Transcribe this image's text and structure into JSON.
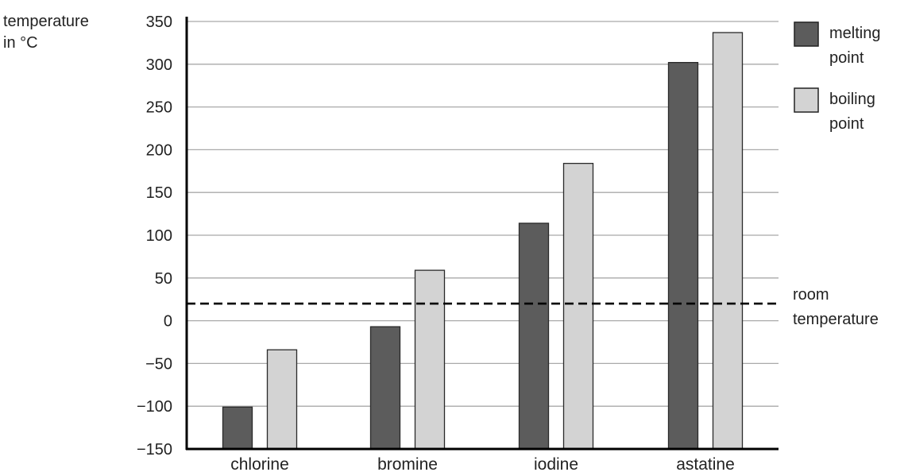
{
  "chart_data": {
    "type": "bar",
    "ylabel_lines": [
      "temperature",
      "in °C"
    ],
    "categories": [
      "chlorine",
      "bromine",
      "iodine",
      "astatine"
    ],
    "series": [
      {
        "name": "melting point",
        "legend_lines": [
          "melting",
          "point"
        ],
        "color": "#5c5c5c",
        "values": [
          -101,
          -7,
          114,
          302
        ]
      },
      {
        "name": "boiling point",
        "legend_lines": [
          "boiling",
          "point"
        ],
        "color": "#d3d3d3",
        "values": [
          -34,
          59,
          184,
          337
        ]
      }
    ],
    "ylim": [
      -150,
      350
    ],
    "yticks": [
      "350",
      "300",
      "250",
      "200",
      "150",
      "100",
      "50",
      "0",
      "−50",
      "−100",
      "−150"
    ],
    "ytick_values": [
      350,
      300,
      250,
      200,
      150,
      100,
      50,
      0,
      -50,
      -100,
      -150
    ],
    "reference_line": {
      "value": 20,
      "label_lines": [
        "room",
        "temperature"
      ],
      "style": "dashed"
    },
    "grid": true,
    "legend_position": "top-right"
  }
}
